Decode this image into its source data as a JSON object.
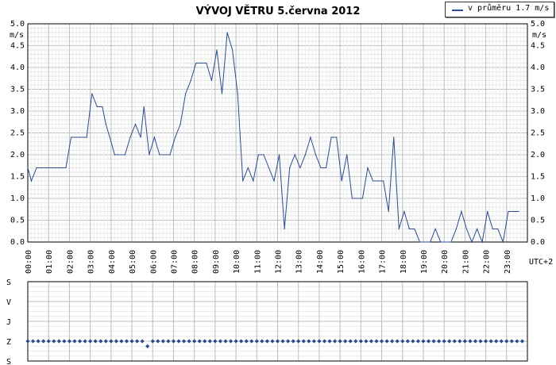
{
  "title": "VÝVOJ VĚTRU  5.června 2012",
  "legend": {
    "label": "v průměru 1.7 m/s",
    "color": "#2a4b8d"
  },
  "chart_data": [
    {
      "type": "line",
      "ylabel": "m/s",
      "xlabel": "UTC+2",
      "ylim": [
        0,
        5
      ],
      "xlim_hours": [
        0,
        24
      ],
      "grid": true,
      "y_ticks": [
        "0.0",
        "0.5",
        "1.0",
        "1.5",
        "2.0",
        "2.5",
        "3.0",
        "3.5",
        "4.0",
        "4.5",
        "5.0"
      ],
      "x_ticks": [
        "00:00",
        "01:00",
        "02:00",
        "03:00",
        "04:00",
        "05:00",
        "06:00",
        "07:00",
        "08:00",
        "09:00",
        "10:00",
        "11:00",
        "12:00",
        "13:00",
        "14:00",
        "15:00",
        "16:00",
        "17:00",
        "18:00",
        "19:00",
        "20:00",
        "21:00",
        "22:00",
        "23:00"
      ],
      "series": [
        {
          "values": [
            [
              0.0,
              1.7
            ],
            [
              0.17,
              1.4
            ],
            [
              0.42,
              1.7
            ],
            [
              1.2,
              1.7
            ],
            [
              1.83,
              1.7
            ],
            [
              2.08,
              2.4
            ],
            [
              2.5,
              2.4
            ],
            [
              2.83,
              2.4
            ],
            [
              3.08,
              3.4
            ],
            [
              3.33,
              3.1
            ],
            [
              3.58,
              3.1
            ],
            [
              3.75,
              2.7
            ],
            [
              4.0,
              2.3
            ],
            [
              4.17,
              2.0
            ],
            [
              4.67,
              2.0
            ],
            [
              4.92,
              2.4
            ],
            [
              5.17,
              2.7
            ],
            [
              5.42,
              2.4
            ],
            [
              5.58,
              3.1
            ],
            [
              5.83,
              2.0
            ],
            [
              6.08,
              2.4
            ],
            [
              6.33,
              2.0
            ],
            [
              6.83,
              2.0
            ],
            [
              7.08,
              2.4
            ],
            [
              7.33,
              2.7
            ],
            [
              7.58,
              3.4
            ],
            [
              7.83,
              3.7
            ],
            [
              8.08,
              4.1
            ],
            [
              8.58,
              4.1
            ],
            [
              8.83,
              3.7
            ],
            [
              9.08,
              4.4
            ],
            [
              9.33,
              3.4
            ],
            [
              9.58,
              4.8
            ],
            [
              9.83,
              4.4
            ],
            [
              10.08,
              3.4
            ],
            [
              10.33,
              1.4
            ],
            [
              10.58,
              1.7
            ],
            [
              10.83,
              1.4
            ],
            [
              11.08,
              2.0
            ],
            [
              11.33,
              2.0
            ],
            [
              11.58,
              1.7
            ],
            [
              11.83,
              1.4
            ],
            [
              12.08,
              2.0
            ],
            [
              12.33,
              0.3
            ],
            [
              12.58,
              1.7
            ],
            [
              12.83,
              2.0
            ],
            [
              13.08,
              1.7
            ],
            [
              13.33,
              2.0
            ],
            [
              13.58,
              2.4
            ],
            [
              13.83,
              2.0
            ],
            [
              14.08,
              1.7
            ],
            [
              14.33,
              1.7
            ],
            [
              14.58,
              2.4
            ],
            [
              14.83,
              2.4
            ],
            [
              15.08,
              1.4
            ],
            [
              15.33,
              2.0
            ],
            [
              15.58,
              1.0
            ],
            [
              16.08,
              1.0
            ],
            [
              16.33,
              1.7
            ],
            [
              16.58,
              1.4
            ],
            [
              17.08,
              1.4
            ],
            [
              17.33,
              0.7
            ],
            [
              17.58,
              2.4
            ],
            [
              17.83,
              0.3
            ],
            [
              18.08,
              0.7
            ],
            [
              18.33,
              0.3
            ],
            [
              18.58,
              0.3
            ],
            [
              18.83,
              0.0
            ],
            [
              19.33,
              0.0
            ],
            [
              19.58,
              0.3
            ],
            [
              19.83,
              0.0
            ],
            [
              20.33,
              0.0
            ],
            [
              20.58,
              0.3
            ],
            [
              20.83,
              0.7
            ],
            [
              21.08,
              0.3
            ],
            [
              21.33,
              0.0
            ],
            [
              21.58,
              0.3
            ],
            [
              21.83,
              0.0
            ],
            [
              22.08,
              0.7
            ],
            [
              22.33,
              0.3
            ],
            [
              22.58,
              0.3
            ],
            [
              22.83,
              0.0
            ],
            [
              23.08,
              0.7
            ],
            [
              23.58,
              0.7
            ]
          ]
        }
      ]
    },
    {
      "type": "scatter",
      "y_ticks": [
        "S",
        "V",
        "J",
        "Z",
        "S"
      ],
      "y_tick_angles": [
        0,
        90,
        180,
        270,
        360
      ],
      "x_ticks_shared_with_above": true,
      "points": [
        [
          0.0,
          270
        ],
        [
          0.25,
          270
        ],
        [
          0.5,
          270
        ],
        [
          0.75,
          270
        ],
        [
          1.0,
          270
        ],
        [
          1.25,
          270
        ],
        [
          1.5,
          270
        ],
        [
          1.75,
          270
        ],
        [
          2.0,
          270
        ],
        [
          2.25,
          270
        ],
        [
          2.5,
          270
        ],
        [
          2.75,
          270
        ],
        [
          3.0,
          270
        ],
        [
          3.25,
          270
        ],
        [
          3.5,
          270
        ],
        [
          3.75,
          270
        ],
        [
          4.0,
          270
        ],
        [
          4.25,
          270
        ],
        [
          4.5,
          270
        ],
        [
          4.75,
          270
        ],
        [
          5.0,
          270
        ],
        [
          5.25,
          270
        ],
        [
          5.5,
          270
        ],
        [
          5.75,
          293
        ],
        [
          6.0,
          270
        ],
        [
          6.25,
          270
        ],
        [
          6.5,
          270
        ],
        [
          6.75,
          270
        ],
        [
          7.0,
          270
        ],
        [
          7.25,
          270
        ],
        [
          7.5,
          270
        ],
        [
          7.75,
          270
        ],
        [
          8.0,
          270
        ],
        [
          8.25,
          270
        ],
        [
          8.5,
          270
        ],
        [
          8.75,
          270
        ],
        [
          9.0,
          270
        ],
        [
          9.25,
          270
        ],
        [
          9.5,
          270
        ],
        [
          9.75,
          270
        ],
        [
          10.0,
          270
        ],
        [
          10.25,
          270
        ],
        [
          10.5,
          270
        ],
        [
          10.75,
          270
        ],
        [
          11.0,
          270
        ],
        [
          11.25,
          270
        ],
        [
          11.5,
          270
        ],
        [
          11.75,
          270
        ],
        [
          12.0,
          270
        ],
        [
          12.25,
          270
        ],
        [
          12.5,
          270
        ],
        [
          12.75,
          270
        ],
        [
          13.0,
          270
        ],
        [
          13.25,
          270
        ],
        [
          13.5,
          270
        ],
        [
          13.75,
          270
        ],
        [
          14.0,
          270
        ],
        [
          14.25,
          270
        ],
        [
          14.5,
          270
        ],
        [
          14.75,
          270
        ],
        [
          15.0,
          270
        ],
        [
          15.25,
          270
        ],
        [
          15.5,
          270
        ],
        [
          15.75,
          270
        ],
        [
          16.0,
          270
        ],
        [
          16.25,
          270
        ],
        [
          16.5,
          270
        ],
        [
          16.75,
          270
        ],
        [
          17.0,
          270
        ],
        [
          17.25,
          270
        ],
        [
          17.5,
          270
        ],
        [
          17.75,
          270
        ],
        [
          18.0,
          270
        ],
        [
          18.25,
          270
        ],
        [
          18.5,
          270
        ],
        [
          18.75,
          270
        ],
        [
          19.0,
          270
        ],
        [
          19.25,
          270
        ],
        [
          19.5,
          270
        ],
        [
          19.75,
          270
        ],
        [
          20.0,
          270
        ],
        [
          20.25,
          270
        ],
        [
          20.5,
          270
        ],
        [
          20.75,
          270
        ],
        [
          21.0,
          270
        ],
        [
          21.25,
          270
        ],
        [
          21.5,
          270
        ],
        [
          21.75,
          270
        ],
        [
          22.0,
          270
        ],
        [
          22.25,
          270
        ],
        [
          22.5,
          270
        ],
        [
          22.75,
          270
        ],
        [
          23.0,
          270
        ],
        [
          23.25,
          270
        ],
        [
          23.5,
          270
        ],
        [
          23.75,
          270
        ]
      ]
    }
  ]
}
